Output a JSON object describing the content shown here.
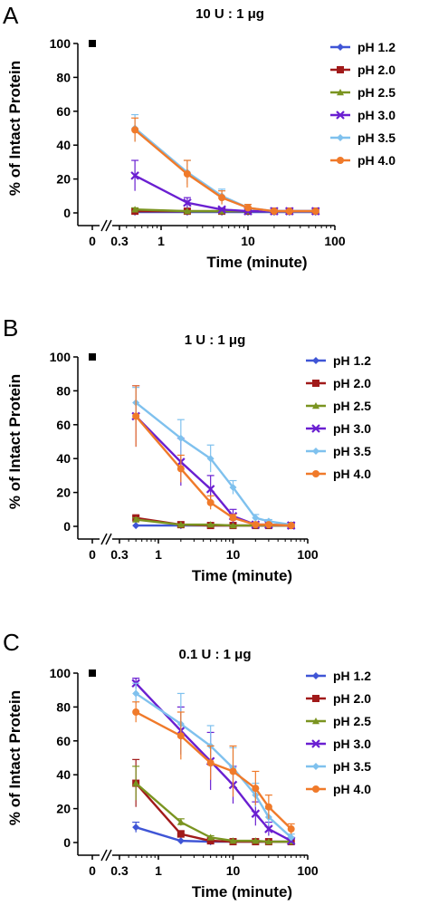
{
  "colors": {
    "pH 1.2": "#3f55d6",
    "pH 2.0": "#a11a1a",
    "pH 2.5": "#7a9420",
    "pH 3.0": "#6a1fd1",
    "pH 3.5": "#7fc1ee",
    "pH 4.0": "#f07a2a"
  },
  "chart_data": [
    {
      "type": "line",
      "panel_letter": "A",
      "title": "10 U : 1 μg",
      "xlabel": "Time (minute)",
      "ylabel": "% of Intact Protein",
      "x_scale": "log, with broken axis showing 0",
      "x_tick_labels": [
        "0",
        "0.3",
        "1",
        "10",
        "100"
      ],
      "y_tick_labels": [
        "0",
        "20",
        "40",
        "60",
        "80",
        "100"
      ],
      "ylim": [
        0,
        100
      ],
      "zero_time_point": {
        "x": 0,
        "y": 100
      },
      "legend_position": "right",
      "series": [
        {
          "name": "pH 1.2",
          "marker": "diamond",
          "x": [
            0.5,
            2,
            5,
            10,
            20,
            30,
            60
          ],
          "y": [
            0.5,
            0.5,
            0.5,
            0.5,
            0.5,
            0.5,
            0.5
          ],
          "err": [
            0.5,
            0.5,
            0.5,
            0.5,
            0.5,
            0.5,
            0.5
          ]
        },
        {
          "name": "pH 2.0",
          "marker": "square",
          "x": [
            0.5,
            2,
            5,
            10,
            20,
            30,
            60
          ],
          "y": [
            1,
            1,
            1,
            1,
            1,
            1,
            1
          ],
          "err": [
            0.5,
            0.5,
            0.5,
            0.5,
            0.5,
            0.5,
            0.5
          ]
        },
        {
          "name": "pH 2.5",
          "marker": "triangle",
          "x": [
            0.5,
            2,
            5,
            10,
            20,
            30,
            60
          ],
          "y": [
            2,
            1,
            1,
            1,
            1,
            1,
            1
          ],
          "err": [
            1,
            0.5,
            0.5,
            0.5,
            0.5,
            0.5,
            0.5
          ]
        },
        {
          "name": "pH 3.0",
          "marker": "x",
          "x": [
            0.5,
            2,
            5,
            10,
            20,
            30,
            60
          ],
          "y": [
            22,
            6,
            2,
            1,
            1,
            1,
            1
          ],
          "err": [
            9,
            3,
            1,
            1,
            0.5,
            0.5,
            0.5
          ]
        },
        {
          "name": "pH 3.5",
          "marker": "diamond",
          "x": [
            0.5,
            2,
            5,
            10,
            20,
            30,
            60
          ],
          "y": [
            50,
            24,
            10,
            3,
            1,
            1,
            1
          ],
          "err": [
            8,
            7,
            4,
            2,
            1,
            0.5,
            0.5
          ]
        },
        {
          "name": "pH 4.0",
          "marker": "circle",
          "x": [
            0.5,
            2,
            5,
            10,
            20,
            30,
            60
          ],
          "y": [
            49,
            23,
            9,
            3,
            1,
            1,
            1
          ],
          "err": [
            7,
            8,
            4,
            2,
            1,
            0.5,
            0.5
          ]
        }
      ]
    },
    {
      "type": "line",
      "panel_letter": "B",
      "title": "1 U : 1 μg",
      "xlabel": "Time (minute)",
      "ylabel": "% of Intact Protein",
      "x_scale": "log, with broken axis showing 0",
      "x_tick_labels": [
        "0",
        "0.3",
        "1",
        "10",
        "100"
      ],
      "y_tick_labels": [
        "0",
        "20",
        "40",
        "60",
        "80",
        "100"
      ],
      "ylim": [
        0,
        100
      ],
      "zero_time_point": {
        "x": 0,
        "y": 100
      },
      "legend_position": "right",
      "series": [
        {
          "name": "pH 1.2",
          "marker": "diamond",
          "x": [
            0.5,
            2,
            5,
            10,
            20,
            30,
            60
          ],
          "y": [
            0.5,
            0.5,
            0.5,
            0.5,
            0.5,
            0.5,
            0.5
          ],
          "err": [
            0.5,
            0.5,
            0.5,
            0.5,
            0.5,
            0.5,
            0.5
          ]
        },
        {
          "name": "pH 2.0",
          "marker": "square",
          "x": [
            0.5,
            2,
            5,
            10,
            20,
            30,
            60
          ],
          "y": [
            5,
            1,
            0.5,
            0.5,
            0.5,
            0.5,
            0.5
          ],
          "err": [
            1,
            0.5,
            0.5,
            0.5,
            0.5,
            0.5,
            0.5
          ]
        },
        {
          "name": "pH 2.5",
          "marker": "triangle",
          "x": [
            0.5,
            2,
            5,
            10,
            20,
            30,
            60
          ],
          "y": [
            4,
            1,
            1,
            0.5,
            0.5,
            0.5,
            0.5
          ],
          "err": [
            1,
            0.5,
            0.5,
            0.5,
            0.5,
            0.5,
            0.5
          ]
        },
        {
          "name": "pH 3.0",
          "marker": "x",
          "x": [
            0.5,
            2,
            5,
            10,
            20,
            30,
            60
          ],
          "y": [
            65,
            38,
            22,
            6,
            1,
            1,
            0.5
          ],
          "err": [
            18,
            14,
            8,
            4,
            1,
            0.5,
            0.5
          ]
        },
        {
          "name": "pH 3.5",
          "marker": "diamond",
          "x": [
            0.5,
            2,
            5,
            10,
            20,
            30,
            60
          ],
          "y": [
            73,
            52,
            40,
            23,
            5,
            3,
            1
          ],
          "err": [
            9,
            11,
            8,
            4,
            2,
            1,
            0.5
          ]
        },
        {
          "name": "pH 4.0",
          "marker": "circle",
          "x": [
            0.5,
            2,
            5,
            10,
            20,
            30,
            60
          ],
          "y": [
            65,
            34,
            14,
            5,
            1,
            1,
            0.5
          ],
          "err": [
            18,
            8,
            4,
            2,
            1,
            0.5,
            0.5
          ]
        }
      ]
    },
    {
      "type": "line",
      "panel_letter": "C",
      "title": "0.1 U : 1 μg",
      "xlabel": "Time (minute)",
      "ylabel": "% of Intact Protein",
      "x_scale": "log, with broken axis showing 0",
      "x_tick_labels": [
        "0",
        "0.3",
        "1",
        "10",
        "100"
      ],
      "y_tick_labels": [
        "0",
        "20",
        "40",
        "60",
        "80",
        "100"
      ],
      "ylim": [
        0,
        100
      ],
      "zero_time_point": {
        "x": 0,
        "y": 100
      },
      "legend_position": "right",
      "series": [
        {
          "name": "pH 1.2",
          "marker": "diamond",
          "x": [
            0.5,
            2,
            5,
            10,
            20,
            30,
            60
          ],
          "y": [
            9,
            1,
            0.5,
            0.5,
            0.5,
            0.5,
            0.5
          ],
          "err": [
            3,
            0.5,
            0.5,
            0.5,
            0.5,
            0.5,
            0.5
          ]
        },
        {
          "name": "pH 2.0",
          "marker": "square",
          "x": [
            0.5,
            2,
            5,
            10,
            20,
            30,
            60
          ],
          "y": [
            35,
            5,
            1,
            0.5,
            0.5,
            0.5,
            0.5
          ],
          "err": [
            14,
            2,
            1,
            0.5,
            0.5,
            0.5,
            0.5
          ]
        },
        {
          "name": "pH 2.5",
          "marker": "triangle",
          "x": [
            0.5,
            2,
            5,
            10,
            20,
            30,
            60
          ],
          "y": [
            35,
            12,
            3,
            1,
            1,
            0.5,
            0.5
          ],
          "err": [
            10,
            2,
            1,
            0.5,
            0.5,
            0.5,
            0.5
          ]
        },
        {
          "name": "pH 3.0",
          "marker": "x",
          "x": [
            0.5,
            2,
            5,
            10,
            20,
            30,
            60
          ],
          "y": [
            94,
            66,
            48,
            34,
            17,
            8,
            1
          ],
          "err": [
            3,
            14,
            17,
            11,
            7,
            4,
            1
          ]
        },
        {
          "name": "pH 3.5",
          "marker": "diamond",
          "x": [
            0.5,
            2,
            5,
            10,
            20,
            30,
            60
          ],
          "y": [
            88,
            70,
            57,
            44,
            28,
            15,
            3
          ],
          "err": [
            6,
            18,
            12,
            12,
            7,
            5,
            2
          ]
        },
        {
          "name": "pH 4.0",
          "marker": "circle",
          "x": [
            0.5,
            2,
            5,
            10,
            20,
            30,
            60
          ],
          "y": [
            77,
            63,
            47,
            42,
            32,
            21,
            8
          ],
          "err": [
            6,
            14,
            10,
            15,
            10,
            7,
            3
          ]
        }
      ]
    }
  ]
}
